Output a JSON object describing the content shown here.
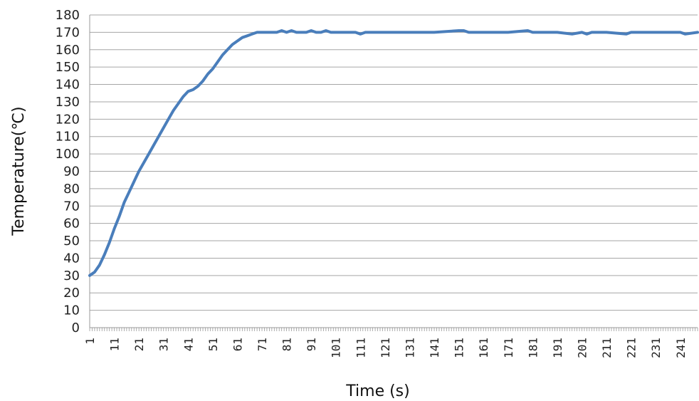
{
  "chart_data": {
    "type": "line",
    "title": "",
    "xlabel": "Time (s)",
    "ylabel": "Temperature(℃)",
    "xlim": [
      1,
      248
    ],
    "ylim": [
      0,
      180
    ],
    "y_ticks": [
      "0",
      "10",
      "20",
      "30",
      "40",
      "50",
      "60",
      "70",
      "80",
      "90",
      "100",
      "110",
      "120",
      "130",
      "140",
      "150",
      "160",
      "170",
      "180"
    ],
    "x_ticks": [
      "1",
      "11",
      "21",
      "31",
      "41",
      "51",
      "61",
      "71",
      "81",
      "91",
      "101",
      "111",
      "121",
      "131",
      "141",
      "151",
      "161",
      "171",
      "181",
      "191",
      "201",
      "211",
      "221",
      "231",
      "241"
    ],
    "grid": "horizontal",
    "legend": "none",
    "line_color": "#4a7ebb",
    "series": [
      {
        "x": [
          1,
          3,
          5,
          7,
          9,
          11,
          13,
          15,
          17,
          19,
          21,
          23,
          25,
          27,
          29,
          31,
          33,
          35,
          37,
          39,
          41,
          43,
          45,
          47,
          49,
          51,
          53,
          55,
          57,
          59,
          61,
          63,
          65,
          67,
          69,
          71,
          73,
          75,
          77,
          79,
          81,
          83,
          85,
          87,
          89,
          91,
          93,
          95,
          97,
          99,
          101,
          103,
          105,
          107,
          109,
          111,
          113,
          115,
          117,
          119,
          121,
          123,
          125,
          127,
          129,
          131,
          141,
          151,
          153,
          155,
          161,
          171,
          179,
          181,
          191,
          197,
          201,
          203,
          205,
          211,
          219,
          221,
          231,
          241,
          243,
          248
        ],
        "values": [
          30,
          32,
          36,
          42,
          49,
          57,
          64,
          72,
          78,
          84,
          90,
          95,
          100,
          105,
          110,
          115,
          120,
          125,
          129,
          133,
          136,
          137,
          139,
          142,
          146,
          149,
          153,
          157,
          160,
          163,
          165,
          167,
          168,
          169,
          170,
          170,
          170,
          170,
          170,
          171,
          170,
          171,
          170,
          170,
          170,
          171,
          170,
          170,
          171,
          170,
          170,
          170,
          170,
          170,
          170,
          169,
          170,
          170,
          170,
          170,
          170,
          170,
          170,
          170,
          170,
          170,
          170,
          171,
          171,
          170,
          170,
          170,
          171,
          170,
          170,
          169,
          170,
          169,
          170,
          170,
          169,
          170,
          170,
          170,
          169,
          170
        ]
      }
    ]
  }
}
